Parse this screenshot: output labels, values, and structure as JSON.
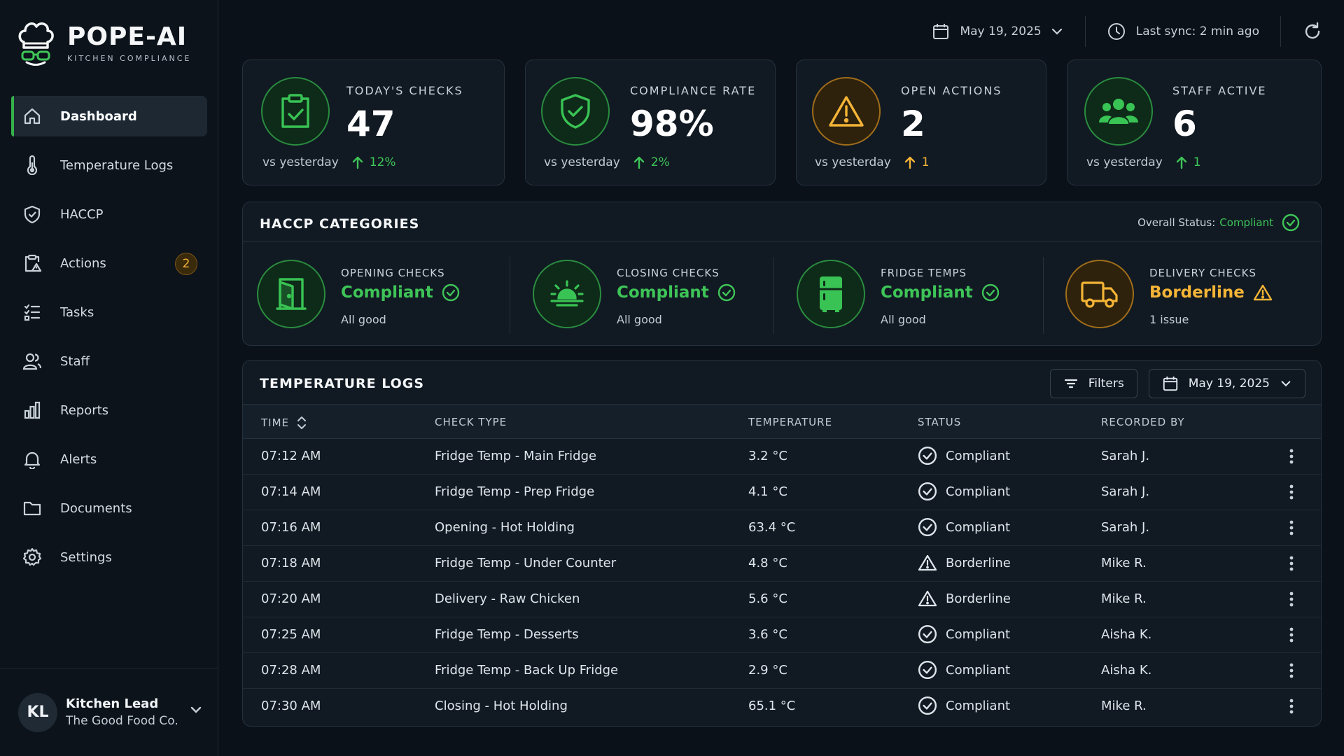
{
  "brand": {
    "name": "POPE-AI",
    "subtitle": "KITCHEN COMPLIANCE"
  },
  "nav": [
    {
      "label": "Dashboard",
      "icon": "home-icon",
      "active": true
    },
    {
      "label": "Temperature Logs",
      "icon": "thermometer-icon"
    },
    {
      "label": "HACCP",
      "icon": "shield-check-icon"
    },
    {
      "label": "Actions",
      "icon": "clipboard-alert-icon",
      "badge": "2"
    },
    {
      "label": "Tasks",
      "icon": "checklist-icon"
    },
    {
      "label": "Staff",
      "icon": "users-icon"
    },
    {
      "label": "Reports",
      "icon": "bar-chart-icon"
    },
    {
      "label": "Alerts",
      "icon": "bell-icon"
    },
    {
      "label": "Documents",
      "icon": "folder-icon"
    },
    {
      "label": "Settings",
      "icon": "gear-icon"
    }
  ],
  "user": {
    "initials": "KL",
    "role": "Kitchen Lead",
    "org": "The Good Food Co."
  },
  "topbar": {
    "date": "May 19, 2025",
    "sync": "Last sync: 2 min ago"
  },
  "stats": [
    {
      "label": "TODAY'S CHECKS",
      "value": "47",
      "compare": "vs yesterday",
      "trend": "12%",
      "tone": "green",
      "icon": "clipboard-check-icon"
    },
    {
      "label": "COMPLIANCE RATE",
      "value": "98%",
      "compare": "vs yesterday",
      "trend": "2%",
      "tone": "green",
      "icon": "shield-check-icon"
    },
    {
      "label": "OPEN ACTIONS",
      "value": "2",
      "compare": "vs yesterday",
      "trend": "1",
      "tone": "amber",
      "icon": "warning-icon"
    },
    {
      "label": "STAFF ACTIVE",
      "value": "6",
      "compare": "vs yesterday",
      "trend": "1",
      "tone": "green",
      "icon": "users-icon"
    }
  ],
  "haccp": {
    "title": "HACCP CATEGORIES",
    "overall_label": "Overall Status:",
    "overall_value": "Compliant",
    "categories": [
      {
        "label": "OPENING CHECKS",
        "status": "Compliant",
        "note": "All good",
        "tone": "green",
        "icon": "door-icon"
      },
      {
        "label": "CLOSING CHECKS",
        "status": "Compliant",
        "note": "All good",
        "tone": "green",
        "icon": "sunset-icon"
      },
      {
        "label": "FRIDGE TEMPS",
        "status": "Compliant",
        "note": "All good",
        "tone": "green",
        "icon": "fridge-icon"
      },
      {
        "label": "DELIVERY CHECKS",
        "status": "Borderline",
        "note": "1 issue",
        "tone": "amber",
        "icon": "truck-icon"
      }
    ]
  },
  "logs": {
    "title": "TEMPERATURE LOGS",
    "filters_label": "Filters",
    "date": "May 19, 2025",
    "columns": {
      "time": "TIME",
      "type": "CHECK TYPE",
      "temp": "TEMPERATURE",
      "status": "STATUS",
      "by": "RECORDED BY"
    },
    "rows": [
      {
        "time": "07:12 AM",
        "type": "Fridge Temp - Main Fridge",
        "temp": "3.2 °C",
        "status": "Compliant",
        "by": "Sarah J."
      },
      {
        "time": "07:14 AM",
        "type": "Fridge Temp - Prep Fridge",
        "temp": "4.1 °C",
        "status": "Compliant",
        "by": "Sarah J."
      },
      {
        "time": "07:16 AM",
        "type": "Opening - Hot Holding",
        "temp": "63.4 °C",
        "status": "Compliant",
        "by": "Sarah J."
      },
      {
        "time": "07:18 AM",
        "type": "Fridge Temp - Under Counter",
        "temp": "4.8 °C",
        "status": "Borderline",
        "by": "Mike R."
      },
      {
        "time": "07:20 AM",
        "type": "Delivery - Raw Chicken",
        "temp": "5.6 °C",
        "status": "Borderline",
        "by": "Mike R."
      },
      {
        "time": "07:25 AM",
        "type": "Fridge Temp - Desserts",
        "temp": "3.6 °C",
        "status": "Compliant",
        "by": "Aisha K."
      },
      {
        "time": "07:28 AM",
        "type": "Fridge Temp - Back Up Fridge",
        "temp": "2.9 °C",
        "status": "Compliant",
        "by": "Aisha K."
      },
      {
        "time": "07:30 AM",
        "type": "Closing - Hot Holding",
        "temp": "65.1 °C",
        "status": "Compliant",
        "by": "Mike R."
      }
    ]
  },
  "colors": {
    "green": "#3ec457",
    "amber": "#f4b436",
    "background": "#0a1119",
    "card": "#111a23"
  }
}
